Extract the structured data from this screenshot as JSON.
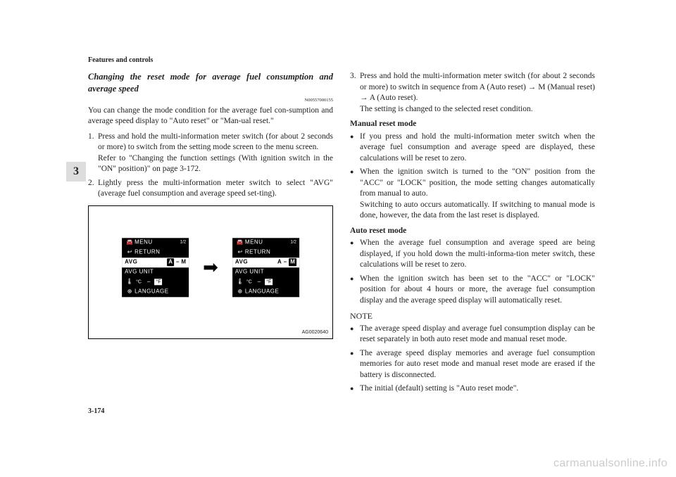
{
  "header": "Features and controls",
  "section_tab": "3",
  "page_number": "3-174",
  "watermark": "carmanualsonline.info",
  "left": {
    "subheading": "Changing the reset mode for average fuel consumption and average speed",
    "docnum": "N00557000155",
    "intro": "You can change the mode condition for the average fuel con-sumption and average speed display to \"Auto reset\" or \"Man-ual reset.\"",
    "steps": [
      {
        "num": "1.",
        "text": "Press and hold the multi-information meter switch (for about 2 seconds or more) to switch from the setting mode screen to the menu screen.",
        "sub": "Refer to \"Changing the function settings (With ignition switch in the \"ON\" position)\" on page 3-172."
      },
      {
        "num": "2.",
        "text": "Lightly press the multi-information meter switch to select \"AVG\" (average fuel consumption and average speed set-ting)."
      }
    ],
    "figure": {
      "rows": [
        {
          "icon": "≡",
          "label": "MENU",
          "badge": "1/2"
        },
        {
          "icon": "↩",
          "label": "RETURN"
        },
        {
          "icon": "",
          "label": "AVG",
          "avg_a": "A",
          "avg_dash": "–",
          "avg_m": "M"
        },
        {
          "icon": "",
          "label": "AVG UNIT"
        },
        {
          "icon": "🌡",
          "c": "°C",
          "dash": "–",
          "f": "°F"
        },
        {
          "icon": "⊕",
          "label": "LANGUAGE"
        }
      ],
      "code": "AG0020640"
    }
  },
  "right": {
    "steps": [
      {
        "num": "3.",
        "text": "Press and hold the multi-information meter switch (for about 2 seconds or more) to switch in sequence from A (Auto reset) → M (Manual reset) → A (Auto reset).",
        "sub": "The setting is changed to the selected reset condition."
      }
    ],
    "manual_head": "Manual reset mode",
    "manual_bullets": [
      "If you press and hold the multi-information meter switch when the average fuel consumption and average speed are displayed, these calculations will be reset to zero.",
      "When the ignition switch is turned to the \"ON\" position from the \"ACC\" or \"LOCK\" position, the mode setting changes automatically from manual to auto.\nSwitching to auto occurs automatically. If switching to manual mode is done, however, the data from the last reset is displayed."
    ],
    "auto_head": "Auto reset mode",
    "auto_bullets": [
      "When the average fuel consumption and average speed are being displayed, if you hold down the multi-informa-tion meter switch, these calculations will be reset to zero.",
      "When the ignition switch has been set to the \"ACC\" or \"LOCK\" position for about 4 hours or more, the average fuel consumption display and the average speed display will automatically reset."
    ],
    "note_head": "NOTE",
    "note_bullets": [
      "The average speed display and average fuel consumption display can be reset separately in both auto reset mode and manual reset mode.",
      "The average speed display memories and average fuel consumption memories for auto reset mode and manual reset mode are erased if the battery is disconnected.",
      "The initial (default) setting is \"Auto reset mode\"."
    ]
  }
}
